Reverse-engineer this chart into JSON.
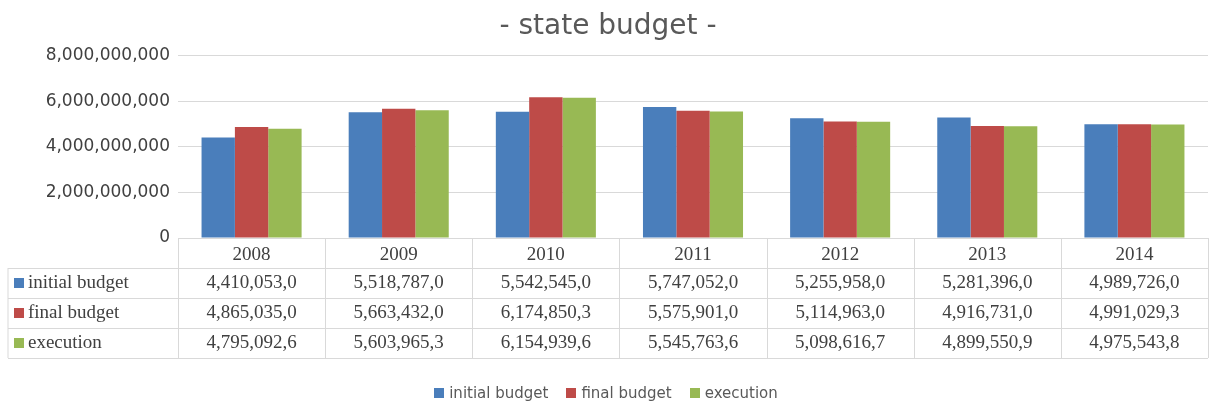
{
  "chart_data": {
    "type": "bar",
    "title": "- state budget -",
    "categories": [
      "2008",
      "2009",
      "2010",
      "2011",
      "2012",
      "2013",
      "2014"
    ],
    "series": [
      {
        "name": "initial budget",
        "color": "#4a7ebb",
        "values": [
          4410053000,
          5518787000,
          5542545000,
          5747052000,
          5255958000,
          5281396000,
          4989726000
        ],
        "value_labels": [
          "4,410,053,0",
          "5,518,787,0",
          "5,542,545,0",
          "5,747,052,0",
          "5,255,958,0",
          "5,281,396,0",
          "4,989,726,0"
        ]
      },
      {
        "name": "final budget",
        "color": "#be4b48",
        "values": [
          4865035000,
          5663432000,
          6174850300,
          5575901000,
          5114963000,
          4916731000,
          4991029300
        ],
        "value_labels": [
          "4,865,035,0",
          "5,663,432,0",
          "6,174,850,3",
          "5,575,901,0",
          "5,114,963,0",
          "4,916,731,0",
          "4,991,029,3"
        ]
      },
      {
        "name": "execution",
        "color": "#98b954",
        "values": [
          4795092600,
          5603965300,
          6154939600,
          5545763600,
          5098616700,
          4899550900,
          4975543800
        ],
        "value_labels": [
          "4,795,092,6",
          "5,603,965,3",
          "6,154,939,6",
          "5,545,763,6",
          "5,098,616,7",
          "4,899,550,9",
          "4,975,543,8"
        ]
      }
    ],
    "ylim": [
      0,
      8000000000
    ],
    "yticks": [
      0,
      {
        "value": 2000000000,
        "label": "2,000,000,000"
      },
      {
        "value": 4000000000,
        "label": "4,000,000,000"
      },
      {
        "value": 6000000000,
        "label": "6,000,000,000"
      },
      {
        "value": 8000000000,
        "label": "8,000,000,000"
      }
    ],
    "grid": "y",
    "legend": "bottom"
  }
}
